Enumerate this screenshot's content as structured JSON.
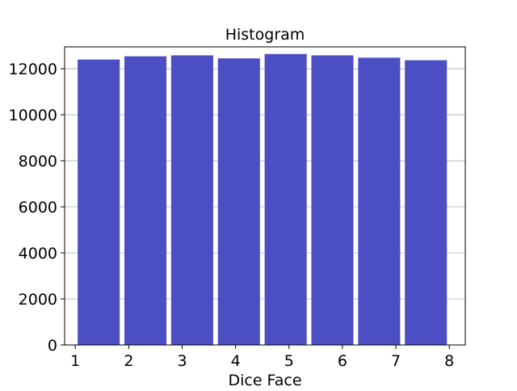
{
  "chart_data": {
    "type": "bar",
    "title": "Histogram",
    "xlabel": "Dice Face",
    "ylabel": "",
    "categories": [
      "1",
      "2",
      "3",
      "4",
      "5",
      "6",
      "7",
      "8"
    ],
    "values": [
      12400,
      12540,
      12580,
      12450,
      12640,
      12580,
      12480,
      12370
    ],
    "xlim": [
      0.8,
      8.3
    ],
    "ylim": [
      0,
      12950
    ],
    "xticks": [
      1,
      2,
      3,
      4,
      5,
      6,
      7,
      8
    ],
    "yticks": [
      0,
      2000,
      4000,
      6000,
      8000,
      10000,
      12000
    ],
    "grid": "horizontal",
    "legend": "none",
    "colors": {
      "bar": "#4c4fc4",
      "grid": "#b0b0b0",
      "axis": "#000000"
    }
  }
}
